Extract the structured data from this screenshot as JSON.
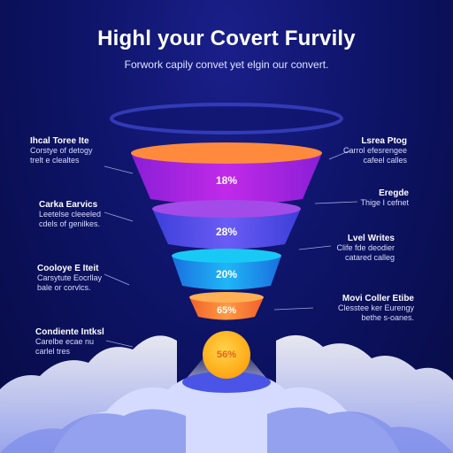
{
  "header": {
    "title": "Highl your Covert Furvily",
    "subtitle": "Forwork capily convet yet elgin our convert."
  },
  "funnel": {
    "segments": [
      {
        "label": "18%",
        "color_top": "#ff8a3d",
        "color_body": "#b027e6"
      },
      {
        "label": "28%",
        "color_top": "#a24be8",
        "color_body": "#5a55f0"
      },
      {
        "label": "20%",
        "color_top": "#19c9f5",
        "color_body": "#1e8df0"
      },
      {
        "label": "65%",
        "color_top": "#ffb054",
        "color_body": "#ff7a3a"
      }
    ],
    "drop_label": "56%",
    "drop_color": "#ffb21a"
  },
  "notes_left": [
    {
      "heading": "Ihcal Toree Ite",
      "lines": [
        "Corstye of detogy",
        "trelt e clealtes"
      ]
    },
    {
      "heading": "Carka Earvics",
      "lines": [
        "Leetelse cleeeled",
        "cdels of genilkes."
      ]
    },
    {
      "heading": "Cooloye E Iteit",
      "lines": [
        "Carsytute Eocrllay",
        "bale or corvlcs."
      ]
    },
    {
      "heading": "Condiente Intksl",
      "lines": [
        "Carelbe ecae nu",
        "carlel tres"
      ]
    }
  ],
  "notes_right": [
    {
      "heading": "Lsrea Ptog",
      "lines": [
        "Carrol efesrengee",
        "cafeel calles"
      ]
    },
    {
      "heading": "Eregde",
      "lines": [
        "Thige I cefnet"
      ]
    },
    {
      "heading": "Lvel Writes",
      "lines": [
        "Clife fde deodier",
        "catared calleg"
      ]
    },
    {
      "heading": "Movi Coller Etibe",
      "lines": [
        "Clesstee ker Eurengy",
        "bethe s-oanes."
      ]
    }
  ],
  "colors": {
    "accent_orange": "#ff8a3d",
    "accent_purple": "#b027e6",
    "accent_blue": "#1e8df0",
    "accent_yellow": "#ffb21a"
  }
}
